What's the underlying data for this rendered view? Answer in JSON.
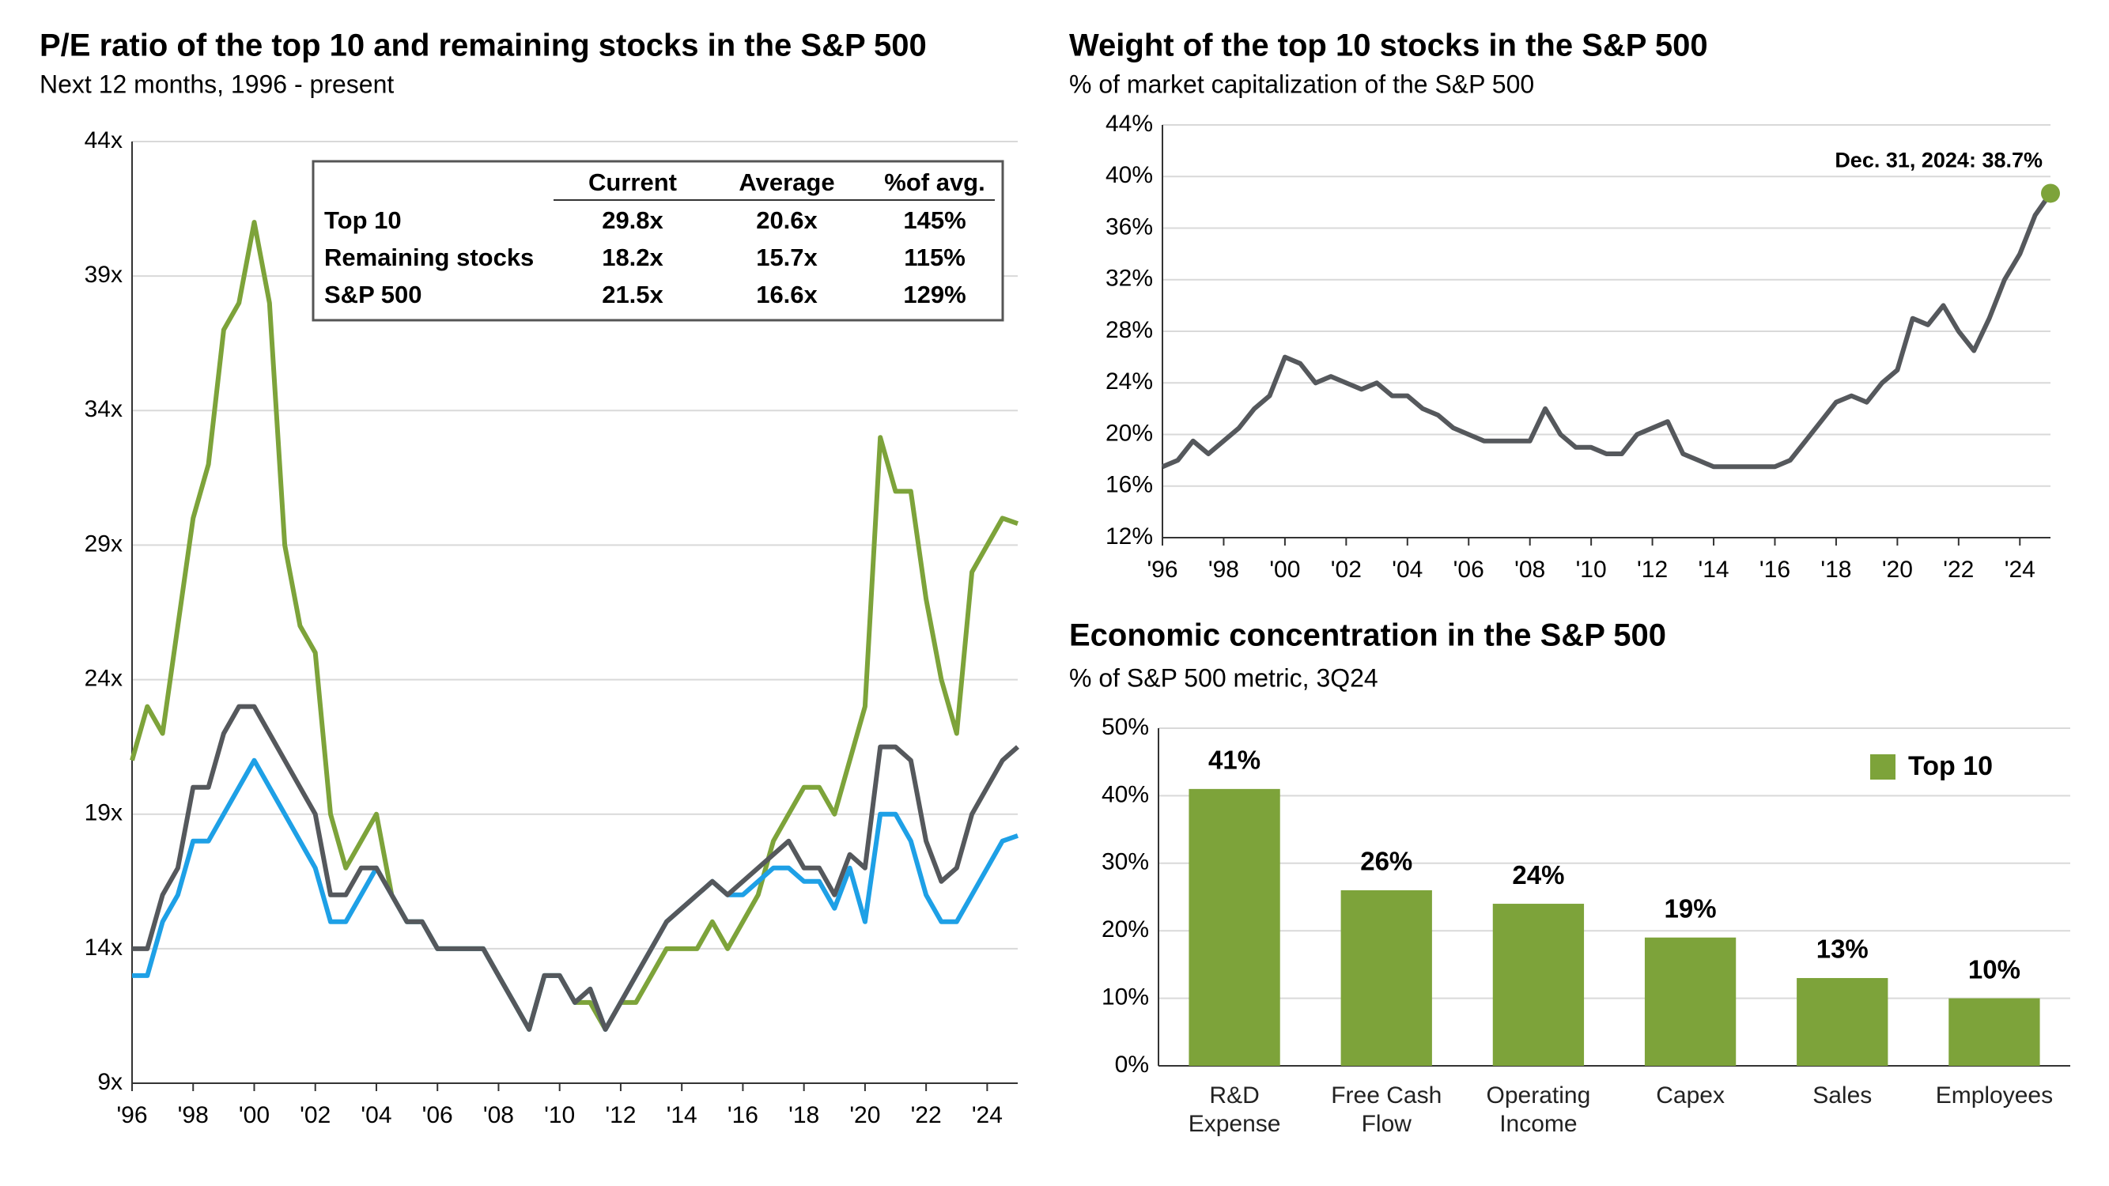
{
  "chart_data": [
    {
      "type": "line",
      "title": "P/E ratio of the top 10 and remaining stocks in the S&P 500",
      "subtitle": "Next 12 months, 1996 - present",
      "x": [
        1996,
        1996.5,
        1997,
        1997.5,
        1998,
        1998.5,
        1999,
        1999.5,
        2000,
        2000.5,
        2001,
        2001.5,
        2002,
        2002.5,
        2003,
        2003.5,
        2004,
        2004.5,
        2005,
        2005.5,
        2006,
        2006.5,
        2007,
        2007.5,
        2008,
        2008.5,
        2009,
        2009.5,
        2010,
        2010.5,
        2011,
        2011.5,
        2012,
        2012.5,
        2013,
        2013.5,
        2014,
        2014.5,
        2015,
        2015.5,
        2016,
        2016.5,
        2017,
        2017.5,
        2018,
        2018.5,
        2019,
        2019.5,
        2020,
        2020.5,
        2021,
        2021.5,
        2022,
        2022.5,
        2023,
        2023.5,
        2024,
        2024.5,
        2025
      ],
      "series": [
        {
          "name": "Top 10",
          "color": "#7da33a",
          "values": [
            21,
            23,
            22,
            26,
            30,
            32,
            37,
            38,
            41,
            38,
            29,
            26,
            25,
            19,
            17,
            18,
            19,
            16,
            15,
            15,
            14,
            14,
            14,
            14,
            13,
            12,
            11,
            13,
            13,
            12,
            12,
            11,
            12,
            12,
            13,
            14,
            14,
            14,
            15,
            14,
            15,
            16,
            18,
            19,
            20,
            20,
            19,
            21,
            23,
            33,
            31,
            31,
            27,
            24,
            22,
            28,
            29,
            30,
            29.8
          ]
        },
        {
          "name": "Remaining stocks",
          "color": "#1ea0e6",
          "values": [
            13,
            13,
            15,
            16,
            18,
            18,
            19,
            20,
            21,
            20,
            19,
            18,
            17,
            15,
            15,
            16,
            17,
            16,
            15,
            15,
            14,
            14,
            14,
            14,
            13,
            12,
            11,
            13,
            13,
            12,
            12.5,
            11,
            12,
            13,
            14,
            15,
            15.5,
            16,
            16.5,
            16,
            16,
            16.5,
            17,
            17,
            16.5,
            16.5,
            15.5,
            17,
            15,
            19,
            19,
            18,
            16,
            15,
            15,
            16,
            17,
            18,
            18.2
          ]
        },
        {
          "name": "S&P 500",
          "color": "#55585c",
          "values": [
            14,
            14,
            16,
            17,
            20,
            20,
            22,
            23,
            23,
            22,
            21,
            20,
            19,
            16,
            16,
            17,
            17,
            16,
            15,
            15,
            14,
            14,
            14,
            14,
            13,
            12,
            11,
            13,
            13,
            12,
            12.5,
            11,
            12,
            13,
            14,
            15,
            15.5,
            16,
            16.5,
            16,
            16.5,
            17,
            17.5,
            18,
            17,
            17,
            16,
            17.5,
            17,
            21.5,
            21.5,
            21,
            18,
            16.5,
            17,
            19,
            20,
            21,
            21.5
          ]
        }
      ],
      "xlim": [
        1996,
        2025
      ],
      "xticks": [
        {
          "value": 1996,
          "label": "'96"
        },
        {
          "value": 1998,
          "label": "'98"
        },
        {
          "value": 2000,
          "label": "'00"
        },
        {
          "value": 2002,
          "label": "'02"
        },
        {
          "value": 2004,
          "label": "'04"
        },
        {
          "value": 2006,
          "label": "'06"
        },
        {
          "value": 2008,
          "label": "'08"
        },
        {
          "value": 2010,
          "label": "'10"
        },
        {
          "value": 2012,
          "label": "'12"
        },
        {
          "value": 2014,
          "label": "'14"
        },
        {
          "value": 2016,
          "label": "'16"
        },
        {
          "value": 2018,
          "label": "'18"
        },
        {
          "value": 2020,
          "label": "'20"
        },
        {
          "value": 2022,
          "label": "'22"
        },
        {
          "value": 2024,
          "label": "'24"
        }
      ],
      "ylim": [
        9,
        44
      ],
      "yticks": [
        {
          "value": 9,
          "label": "9x"
        },
        {
          "value": 14,
          "label": "14x"
        },
        {
          "value": 19,
          "label": "19x"
        },
        {
          "value": 24,
          "label": "24x"
        },
        {
          "value": 29,
          "label": "29x"
        },
        {
          "value": 34,
          "label": "34x"
        },
        {
          "value": 39,
          "label": "39x"
        },
        {
          "value": 44,
          "label": "44x"
        }
      ],
      "grid": true,
      "table": {
        "columns": [
          "Current",
          "Average",
          "%of avg."
        ],
        "rows": [
          {
            "label": "Top 10",
            "cells": [
              "29.8x",
              "20.6x",
              "145%"
            ]
          },
          {
            "label": "Remaining stocks",
            "cells": [
              "18.2x",
              "15.7x",
              "115%"
            ]
          },
          {
            "label": "S&P 500",
            "cells": [
              "21.5x",
              "16.6x",
              "129%"
            ]
          }
        ]
      }
    },
    {
      "type": "line",
      "title": "Weight of the top 10 stocks in the S&P 500",
      "subtitle": "% of market capitalization of the S&P 500",
      "x": [
        1996,
        1996.5,
        1997,
        1997.5,
        1998,
        1998.5,
        1999,
        1999.5,
        2000,
        2000.5,
        2001,
        2001.5,
        2002,
        2002.5,
        2003,
        2003.5,
        2004,
        2004.5,
        2005,
        2005.5,
        2006,
        2006.5,
        2007,
        2007.5,
        2008,
        2008.5,
        2009,
        2009.5,
        2010,
        2010.5,
        2011,
        2011.5,
        2012,
        2012.5,
        2013,
        2013.5,
        2014,
        2014.5,
        2015,
        2015.5,
        2016,
        2016.5,
        2017,
        2017.5,
        2018,
        2018.5,
        2019,
        2019.5,
        2020,
        2020.5,
        2021,
        2021.5,
        2022,
        2022.5,
        2023,
        2023.5,
        2024,
        2024.5,
        2025
      ],
      "series": [
        {
          "color": "#55585c",
          "values": [
            17.5,
            18,
            19.5,
            18.5,
            19.5,
            20.5,
            22,
            23,
            26,
            25.5,
            24,
            24.5,
            24,
            23.5,
            24,
            23,
            23,
            22,
            21.5,
            20.5,
            20,
            19.5,
            19.5,
            19.5,
            19.5,
            22,
            20,
            19,
            19,
            18.5,
            18.5,
            20,
            20.5,
            21,
            18.5,
            18,
            17.5,
            17.5,
            17.5,
            17.5,
            17.5,
            18,
            19.5,
            21,
            22.5,
            23,
            22.5,
            24,
            25,
            29,
            28.5,
            30,
            28,
            26.5,
            29,
            32,
            34,
            37,
            38.7
          ]
        }
      ],
      "annotation": {
        "text": "Dec. 31, 2024: 38.7%",
        "color": "#7da33a"
      },
      "xlim": [
        1996,
        2025
      ],
      "xticks": [
        {
          "value": 1996,
          "label": "'96"
        },
        {
          "value": 1998,
          "label": "'98"
        },
        {
          "value": 2000,
          "label": "'00"
        },
        {
          "value": 2002,
          "label": "'02"
        },
        {
          "value": 2004,
          "label": "'04"
        },
        {
          "value": 2006,
          "label": "'06"
        },
        {
          "value": 2008,
          "label": "'08"
        },
        {
          "value": 2010,
          "label": "'10"
        },
        {
          "value": 2012,
          "label": "'12"
        },
        {
          "value": 2014,
          "label": "'14"
        },
        {
          "value": 2016,
          "label": "'16"
        },
        {
          "value": 2018,
          "label": "'18"
        },
        {
          "value": 2020,
          "label": "'20"
        },
        {
          "value": 2022,
          "label": "'22"
        },
        {
          "value": 2024,
          "label": "'24"
        }
      ],
      "ylim": [
        12,
        44
      ],
      "yticks": [
        {
          "value": 12,
          "label": "12%"
        },
        {
          "value": 16,
          "label": "16%"
        },
        {
          "value": 20,
          "label": "20%"
        },
        {
          "value": 24,
          "label": "24%"
        },
        {
          "value": 28,
          "label": "28%"
        },
        {
          "value": 32,
          "label": "32%"
        },
        {
          "value": 36,
          "label": "36%"
        },
        {
          "value": 40,
          "label": "40%"
        },
        {
          "value": 44,
          "label": "44%"
        }
      ],
      "grid": true
    },
    {
      "type": "bar",
      "title": "Economic concentration in the S&P 500",
      "subtitle": "% of S&P 500 metric, 3Q24",
      "categories": [
        "R&D Expense",
        "Free Cash Flow",
        "Operating Income",
        "Capex",
        "Sales",
        "Employees"
      ],
      "series": [
        {
          "name": "Top 10",
          "color": "#7da33a",
          "values": [
            41,
            26,
            24,
            19,
            13,
            10
          ],
          "value_labels": [
            "41%",
            "26%",
            "24%",
            "19%",
            "13%",
            "10%"
          ]
        }
      ],
      "ylim": [
        0,
        50
      ],
      "yticks": [
        {
          "value": 0,
          "label": "0%"
        },
        {
          "value": 10,
          "label": "10%"
        },
        {
          "value": 20,
          "label": "20%"
        },
        {
          "value": 30,
          "label": "30%"
        },
        {
          "value": 40,
          "label": "40%"
        },
        {
          "value": 50,
          "label": "50%"
        }
      ],
      "grid": true,
      "legend": "top-right"
    }
  ]
}
